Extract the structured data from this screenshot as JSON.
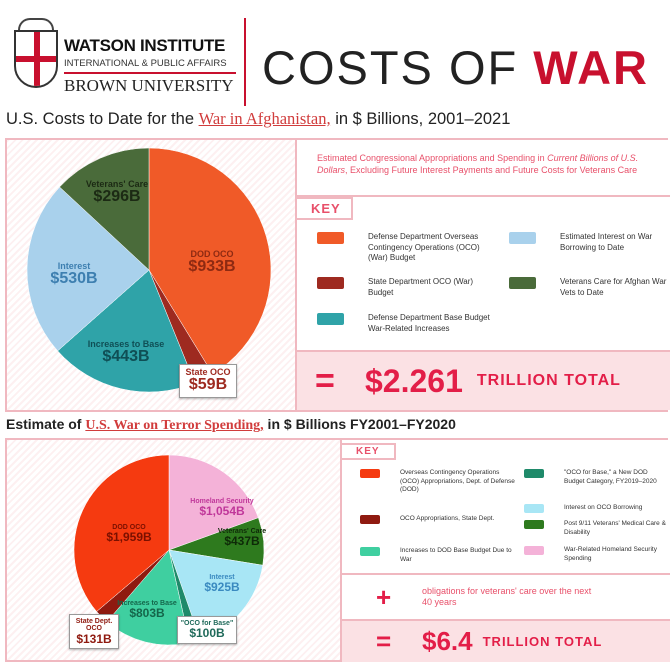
{
  "header": {
    "org_name": "WATSON INSTITUTE",
    "org_sub": "INTERNATIONAL & PUBLIC AFFAIRS",
    "university": "BROWN UNIVERSITY",
    "title_a": "COSTS OF ",
    "title_b": "WAR"
  },
  "section1": {
    "title_pre": "U.S. Costs to Date for the ",
    "title_link": "War in Afghanistan,",
    "title_post": " in $ Billions, 2001–2021",
    "desc_a": "Estimated Congressional Appropriations and Spending in ",
    "desc_italic": "Current Billions of U.S. Dollars",
    ",desc_b": "",
    "desc_rest": ", Excluding Future Interest Payments and Future Costs for Veterans Care",
    "key_label": "KEY",
    "legend": [
      {
        "label": "Defense Department Overseas Contingency Operations (OCO) (War) Budget",
        "color": "#f05a28"
      },
      {
        "label": "Estimated Interest on War Borrowing to Date",
        "color": "#a9d1ec"
      },
      {
        "label": "State Department OCO (War) Budget",
        "color": "#9e2a20"
      },
      {
        "label": "Veterans Care for Afghan War Vets to Date",
        "color": "#4a6b3a"
      },
      {
        "label": "Defense Department Base Budget War-Related Increases",
        "color": "#2fa3a8"
      }
    ],
    "total_sign": "=",
    "total_value": "$2.261",
    "total_unit": "TRILLION TOTAL"
  },
  "section2": {
    "title_pre": "Estimate of ",
    "title_link": "U.S. War on Terror Spending,",
    "title_post": " in $ Billions FY2001–FY2020",
    "key_label": "KEY",
    "legend": [
      {
        "label": "Overseas Contingency Operations (OCO) Appropriations, Dept. of Defense (DOD)",
        "color": "#f53a10"
      },
      {
        "label": "\"OCO for Base,\" a New DOD Budget Category, FY2019–2020",
        "color": "#1f8a6a"
      },
      {
        "label": "Interest on OCO Borrowing",
        "color": "#a8e6f5"
      },
      {
        "label": "OCO Appropriations, State Dept.",
        "color": "#8f1a10"
      },
      {
        "label": "Post 9/11 Veterans' Medical Care & Disability",
        "color": "#2e7a1e"
      },
      {
        "label": "Increases to DOD Base Budget Due to War",
        "color": "#3fcfa0"
      },
      {
        "label": "War-Related Homeland Security Spending",
        "color": "#f4b2d8"
      }
    ],
    "plus_sign": "+",
    "plus_text": "obligations for veterans' care over the next 40 years",
    "total_sign": "=",
    "total_value": "$6.4",
    "total_unit": "TRILLION TOTAL"
  },
  "chart_data": [
    {
      "type": "pie",
      "title": "",
      "unit": "$ Billions",
      "slices": [
        {
          "name": "DOD OCO",
          "label": "$933B",
          "value": 933,
          "color": "#f05a28",
          "text_color": "#8e2a12"
        },
        {
          "name": "State OCO",
          "label": "$59B",
          "value": 59,
          "color": "#9e2a20",
          "text_color": "#9e2a20"
        },
        {
          "name": "Increases to Base",
          "label": "$443B",
          "value": 443,
          "color": "#2fa3a8",
          "text_color": "#0f4f55"
        },
        {
          "name": "Interest",
          "label": "$530B",
          "value": 530,
          "color": "#a9d1ec",
          "text_color": "#3d7fb0"
        },
        {
          "name": "Veterans' Care",
          "label": "$296B",
          "value": 296,
          "color": "#4a6b3a",
          "text_color": "#1c2a14"
        }
      ]
    },
    {
      "type": "pie",
      "title": "",
      "unit": "$ Billions",
      "slices": [
        {
          "name": "Homeland Security",
          "label": "$1,054B",
          "value": 1054,
          "color": "#f4b2d8",
          "text_color": "#c0379a"
        },
        {
          "name": "Veterans' Care",
          "label": "$437B",
          "value": 437,
          "color": "#2e7a1e",
          "text_color": "#0e2a08"
        },
        {
          "name": "Interest",
          "label": "$925B",
          "value": 925,
          "color": "#a8e6f5",
          "text_color": "#3a8ac0"
        },
        {
          "name": "\"OCO for Base\"",
          "label": "$100B",
          "value": 100,
          "color": "#1f8a6a",
          "text_color": "#1f6a5a"
        },
        {
          "name": "Increases to Base",
          "label": "$803B",
          "value": 803,
          "color": "#3fcfa0",
          "text_color": "#14664a"
        },
        {
          "name": "State Dept. OCO",
          "label": "$131B",
          "value": 131,
          "color": "#8f1a10",
          "text_color": "#8f1a10"
        },
        {
          "name": "DOD OCO",
          "label": "$1,959B",
          "value": 1959,
          "color": "#f53a10",
          "text_color": "#7a1000"
        }
      ]
    }
  ]
}
